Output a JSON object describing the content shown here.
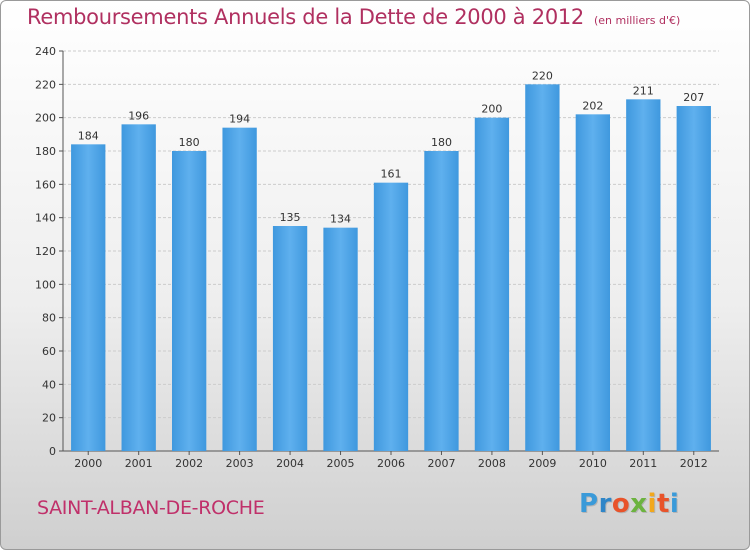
{
  "title": "Remboursements Annuels de la Dette de 2000 à 2012",
  "unit": "(en milliers d'€)",
  "commune": "SAINT-ALBAN-DE-ROCHE",
  "logo": {
    "letters": [
      "P",
      "r",
      "o",
      "x",
      "i",
      "t",
      "i"
    ],
    "colors": [
      "#3a9ad9",
      "#2f86c8",
      "#e8532a",
      "#6cb33f",
      "#f2a81d",
      "#e8532a",
      "#3a9ad9"
    ]
  },
  "colors": {
    "bar": "#3f98de",
    "bar_light": "#5fb0ee",
    "grid": "#cccccc"
  },
  "chart_data": {
    "type": "bar",
    "title": "Remboursements Annuels de la Dette de 2000 à 2012",
    "categories": [
      "2000",
      "2001",
      "2002",
      "2003",
      "2004",
      "2005",
      "2006",
      "2007",
      "2008",
      "2009",
      "2010",
      "2011",
      "2012"
    ],
    "values": [
      184,
      196,
      180,
      194,
      135,
      134,
      161,
      180,
      200,
      220,
      202,
      211,
      207
    ],
    "value_labels": [
      "184",
      "196",
      "180",
      "194",
      "135",
      "134",
      "161",
      "180",
      "200",
      "220",
      "202",
      "211",
      "207"
    ],
    "yticks": [
      "0",
      "20",
      "40",
      "60",
      "80",
      "100",
      "120",
      "140",
      "160",
      "180",
      "200",
      "220",
      "240"
    ],
    "ylim": [
      0,
      240
    ],
    "grid": true,
    "xlabel": "",
    "ylabel": ""
  }
}
